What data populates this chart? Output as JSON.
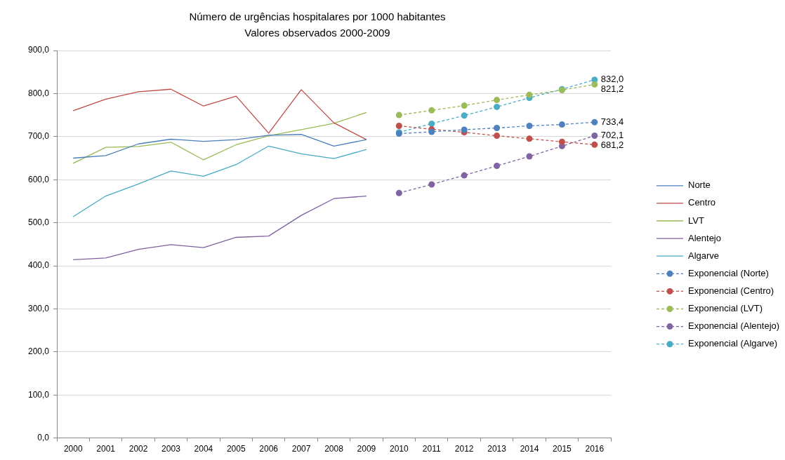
{
  "chart_data": {
    "type": "line",
    "title": "Número de urgências hospitalares por 1000 habitantes",
    "subtitle": "Valores observados 2000-2009",
    "categories": [
      "2000",
      "2001",
      "2002",
      "2003",
      "2004",
      "2005",
      "2006",
      "2007",
      "2008",
      "2009",
      "2010",
      "2011",
      "2012",
      "2013",
      "2014",
      "2015",
      "2016"
    ],
    "ylim": [
      0,
      900
    ],
    "yticks": [
      {
        "value": 0,
        "label": "0,0"
      },
      {
        "value": 100,
        "label": "100,0"
      },
      {
        "value": 200,
        "label": "200,0"
      },
      {
        "value": 300,
        "label": "300,0"
      },
      {
        "value": 400,
        "label": "400,0"
      },
      {
        "value": 500,
        "label": "500,0"
      },
      {
        "value": 600,
        "label": "600,0"
      },
      {
        "value": 700,
        "label": "700,0"
      },
      {
        "value": 800,
        "label": "800,0"
      },
      {
        "value": 900,
        "label": "900,0"
      }
    ],
    "grid": "y",
    "legend": "right",
    "line_style": "solid",
    "series": [
      {
        "name": "Norte",
        "color": "#4a7ebb",
        "values": [
          650,
          656,
          683,
          694,
          689,
          693,
          703,
          705,
          678,
          693,
          null,
          null,
          null,
          null,
          null,
          null,
          null
        ]
      },
      {
        "name": "Centro",
        "color": "#be4b48",
        "values": [
          760,
          787,
          804,
          810,
          771,
          794,
          708,
          809,
          732,
          693,
          null,
          null,
          null,
          null,
          null,
          null,
          null
        ]
      },
      {
        "name": "LVT",
        "color": "#98b954",
        "values": [
          638,
          675,
          677,
          687,
          646,
          681,
          702,
          716,
          731,
          756,
          null,
          null,
          null,
          null,
          null,
          null,
          null
        ]
      },
      {
        "name": "Alentejo",
        "color": "#7d60a0",
        "values": [
          414,
          418,
          438,
          449,
          442,
          466,
          469,
          517,
          556,
          562,
          null,
          null,
          null,
          null,
          null,
          null,
          null
        ]
      },
      {
        "name": "Algarve",
        "color": "#46aac5",
        "values": [
          514,
          562,
          590,
          620,
          608,
          635,
          678,
          660,
          649,
          670,
          null,
          null,
          null,
          null,
          null,
          null,
          null
        ]
      },
      {
        "name": "Exponencial (Norte)",
        "color": "#4f81bd",
        "line_style": "dashed",
        "marker": "circle",
        "values": [
          null,
          null,
          null,
          null,
          null,
          null,
          null,
          null,
          null,
          null,
          707,
          711,
          716,
          720,
          725,
          728,
          733.4
        ],
        "value_labels": [
          null,
          null,
          null,
          null,
          null,
          null,
          null,
          null,
          null,
          null,
          null,
          null,
          null,
          null,
          null,
          null,
          "733,4"
        ]
      },
      {
        "name": "Exponencial (Centro)",
        "color": "#c0504d",
        "line_style": "dashed",
        "marker": "circle",
        "values": [
          null,
          null,
          null,
          null,
          null,
          null,
          null,
          null,
          null,
          null,
          725,
          717,
          710,
          702,
          695,
          688,
          681.2
        ],
        "value_labels": [
          null,
          null,
          null,
          null,
          null,
          null,
          null,
          null,
          null,
          null,
          null,
          null,
          null,
          null,
          null,
          null,
          "681,2"
        ]
      },
      {
        "name": "Exponencial (LVT)",
        "color": "#9bbb59",
        "line_style": "dashed",
        "marker": "circle",
        "values": [
          null,
          null,
          null,
          null,
          null,
          null,
          null,
          null,
          null,
          null,
          750,
          761,
          772,
          785,
          797,
          808,
          821.2
        ],
        "value_labels": [
          null,
          null,
          null,
          null,
          null,
          null,
          null,
          null,
          null,
          null,
          null,
          null,
          null,
          null,
          null,
          null,
          "821,2"
        ]
      },
      {
        "name": "Exponencial (Alentejo)",
        "color": "#8064a2",
        "line_style": "dashed",
        "marker": "circle",
        "values": [
          null,
          null,
          null,
          null,
          null,
          null,
          null,
          null,
          null,
          null,
          569,
          589,
          610,
          632,
          654,
          678,
          702.1
        ],
        "value_labels": [
          null,
          null,
          null,
          null,
          null,
          null,
          null,
          null,
          null,
          null,
          null,
          null,
          null,
          null,
          null,
          null,
          "702,1"
        ]
      },
      {
        "name": "Exponencial (Algarve)",
        "color": "#4bacc6",
        "line_style": "dashed",
        "marker": "circle",
        "values": [
          null,
          null,
          null,
          null,
          null,
          null,
          null,
          null,
          null,
          null,
          710,
          730,
          749,
          769,
          790,
          810,
          832.0
        ],
        "value_labels": [
          null,
          null,
          null,
          null,
          null,
          null,
          null,
          null,
          null,
          null,
          null,
          null,
          null,
          null,
          null,
          null,
          "832,0"
        ]
      }
    ]
  }
}
